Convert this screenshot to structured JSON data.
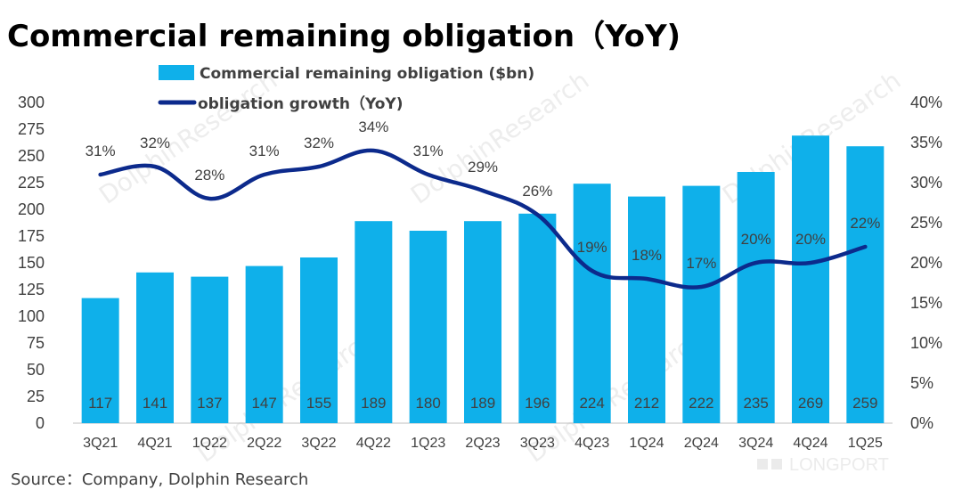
{
  "colors": {
    "bar": "#0fb0ea",
    "line": "#0c2a8c",
    "text": "#404040"
  },
  "watermark": {
    "brand": "DolphinResearch",
    "corner": "LONGPORT"
  },
  "source": "Source：Company, Dolphin Research",
  "chart_data": {
    "type": "bar",
    "title": "Commercial remaining obligation（YoY)",
    "legend_position": "top-left",
    "grid": false,
    "categories": [
      "3Q21",
      "4Q21",
      "1Q22",
      "2Q22",
      "3Q22",
      "4Q22",
      "1Q23",
      "2Q23",
      "3Q23",
      "4Q23",
      "1Q24",
      "2Q24",
      "3Q24",
      "4Q24",
      "1Q25"
    ],
    "series": [
      {
        "name": "Commercial remaining obligation ($bn)",
        "type": "bar",
        "axis": "left",
        "values": [
          117,
          141,
          137,
          147,
          155,
          189,
          180,
          189,
          196,
          224,
          212,
          222,
          235,
          269,
          259
        ]
      },
      {
        "name": "obligation growth（YoY)",
        "type": "line",
        "axis": "right",
        "values": [
          31,
          32,
          28,
          31,
          32,
          34,
          31,
          29,
          26,
          19,
          18,
          17,
          20,
          20,
          22
        ],
        "labels": [
          "31%",
          "32%",
          "28%",
          "31%",
          "32%",
          "34%",
          "31%",
          "29%",
          "26%",
          "19%",
          "18%",
          "17%",
          "20%",
          "20%",
          "22%"
        ]
      }
    ],
    "y_left": {
      "min": 0,
      "max": 300,
      "ticks": [
        "0",
        "25",
        "50",
        "75",
        "100",
        "125",
        "150",
        "175",
        "200",
        "225",
        "250",
        "275",
        "300"
      ]
    },
    "y_right": {
      "min": 0,
      "max": 40,
      "ticks": [
        "0%",
        "5%",
        "10%",
        "15%",
        "20%",
        "25%",
        "30%",
        "35%",
        "40%"
      ]
    }
  }
}
